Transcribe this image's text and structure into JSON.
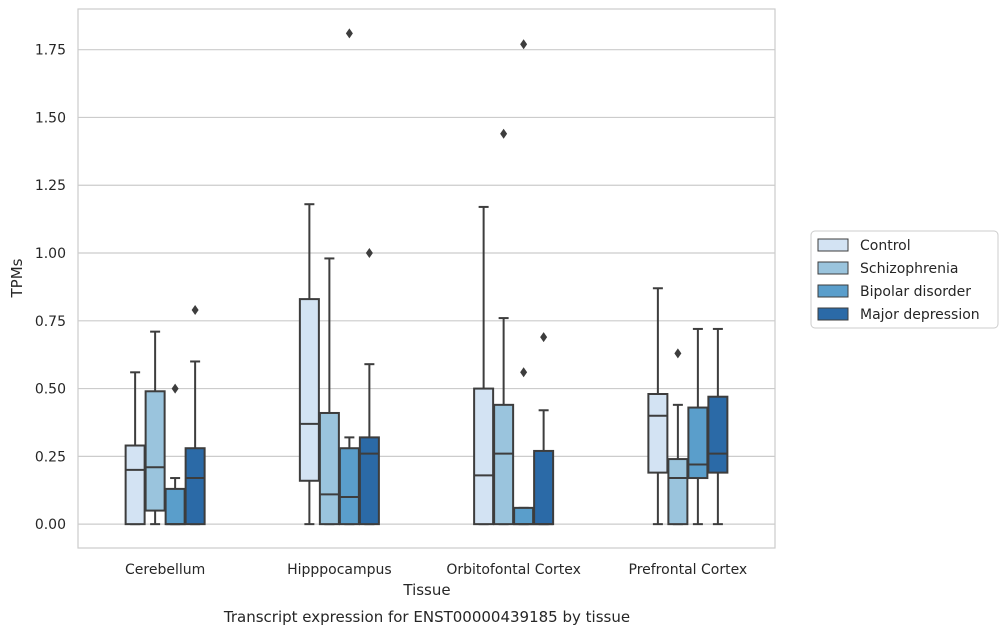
{
  "caption": "Transcript expression for ENST00000439185 by tissue",
  "chart_data": {
    "type": "box",
    "xlabel": "Tissue",
    "ylabel": "TPMs",
    "ylim": [
      -0.088,
      1.9
    ],
    "yticks": [
      "0.00",
      "0.25",
      "0.50",
      "0.75",
      "1.00",
      "1.25",
      "1.50",
      "1.75"
    ],
    "grid": "horizontal",
    "legend_position": "right",
    "categories": [
      "Cerebellum",
      "Hipppocampus",
      "Orbitofontal Cortex",
      "Prefrontal Cortex"
    ],
    "series": [
      {
        "name": "Control",
        "color": "#d3e3f3",
        "boxes": [
          {
            "whislo": 0,
            "q1": 0,
            "med": 0.2,
            "q3": 0.29,
            "whishi": 0.56,
            "fliers": []
          },
          {
            "whislo": 0,
            "q1": 0.16,
            "med": 0.37,
            "q3": 0.83,
            "whishi": 1.18,
            "fliers": []
          },
          {
            "whislo": 0,
            "q1": 0,
            "med": 0.18,
            "q3": 0.5,
            "whishi": 1.17,
            "fliers": []
          },
          {
            "whislo": 0,
            "q1": 0.19,
            "med": 0.4,
            "q3": 0.48,
            "whishi": 0.87,
            "fliers": []
          }
        ]
      },
      {
        "name": "Schizophrenia",
        "color": "#9ac4dd",
        "boxes": [
          {
            "whislo": 0,
            "q1": 0.05,
            "med": 0.21,
            "q3": 0.49,
            "whishi": 0.71,
            "fliers": []
          },
          {
            "whislo": 0,
            "q1": 0,
            "med": 0.11,
            "q3": 0.41,
            "whishi": 0.98,
            "fliers": []
          },
          {
            "whislo": 0,
            "q1": 0,
            "med": 0.26,
            "q3": 0.44,
            "whishi": 0.76,
            "fliers": [
              1.44
            ]
          },
          {
            "whislo": 0,
            "q1": 0,
            "med": 0.17,
            "q3": 0.24,
            "whishi": 0.44,
            "fliers": [
              0.63
            ]
          }
        ]
      },
      {
        "name": "Bipolar disorder",
        "color": "#5a9ecb",
        "boxes": [
          {
            "whislo": 0,
            "q1": 0,
            "med": 0,
            "q3": 0.13,
            "whishi": 0.17,
            "fliers": [
              0.5
            ]
          },
          {
            "whislo": 0,
            "q1": 0,
            "med": 0.1,
            "q3": 0.28,
            "whishi": 0.32,
            "fliers": [
              1.81
            ]
          },
          {
            "whislo": 0,
            "q1": 0,
            "med": 0,
            "q3": 0.06,
            "whishi": 0.06,
            "fliers": [
              0.56,
              1.77
            ]
          },
          {
            "whislo": 0,
            "q1": 0.17,
            "med": 0.22,
            "q3": 0.43,
            "whishi": 0.72,
            "fliers": []
          }
        ]
      },
      {
        "name": "Major depression",
        "color": "#2b6aa7",
        "boxes": [
          {
            "whislo": 0,
            "q1": 0,
            "med": 0.17,
            "q3": 0.28,
            "whishi": 0.6,
            "fliers": [
              0.79
            ]
          },
          {
            "whislo": 0,
            "q1": 0,
            "med": 0.26,
            "q3": 0.32,
            "whishi": 0.59,
            "fliers": [
              1.0
            ]
          },
          {
            "whislo": 0,
            "q1": 0,
            "med": 0,
            "q3": 0.27,
            "whishi": 0.42,
            "fliers": [
              0.69
            ]
          },
          {
            "whislo": 0,
            "q1": 0.19,
            "med": 0.26,
            "q3": 0.47,
            "whishi": 0.72,
            "fliers": []
          }
        ]
      }
    ],
    "colors": {
      "grid": "#cccccc",
      "frame": "#cccccc",
      "line": "#3d3d3d",
      "text": "#262626"
    }
  }
}
